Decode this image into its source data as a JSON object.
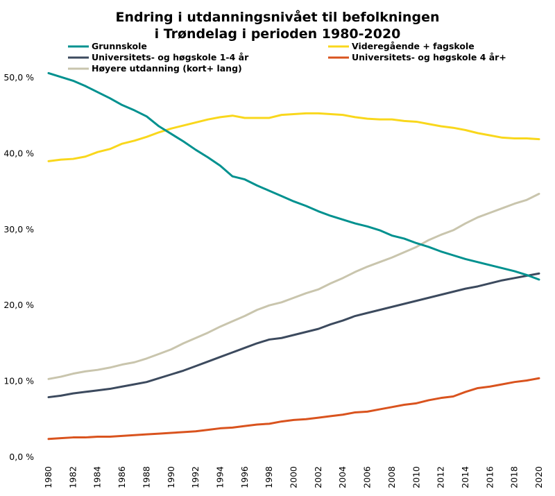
{
  "chart_data": {
    "type": "line",
    "title": [
      "Endring i utdanningsnivået til befolkningen",
      "i Trøndelag i perioden 1980-2020"
    ],
    "xlabel": "",
    "ylabel": "",
    "ylim": [
      0,
      50
    ],
    "y_ticks": [
      "0,0 %",
      "10,0 %",
      "20,0 %",
      "30,0 %",
      "40,0 %",
      "50,0 %"
    ],
    "x_ticks": [
      "1980",
      "1982",
      "1984",
      "1986",
      "1988",
      "1990",
      "1992",
      "1994",
      "1996",
      "1998",
      "2000",
      "2002",
      "2004",
      "2006",
      "2008",
      "2010",
      "2012",
      "2014",
      "2016",
      "2018",
      "2020"
    ],
    "x": [
      1980,
      1981,
      1982,
      1983,
      1984,
      1985,
      1986,
      1987,
      1988,
      1989,
      1990,
      1991,
      1992,
      1993,
      1994,
      1995,
      1996,
      1997,
      1998,
      1999,
      2000,
      2001,
      2002,
      2003,
      2004,
      2005,
      2006,
      2007,
      2008,
      2009,
      2010,
      2011,
      2012,
      2013,
      2014,
      2015,
      2016,
      2017,
      2018,
      2019,
      2020
    ],
    "grid": false,
    "legend_position": "top",
    "series": [
      {
        "name": "Grunnskole",
        "color": "#00918f",
        "values": [
          50.6,
          50.1,
          49.6,
          48.9,
          48.1,
          47.3,
          46.4,
          45.7,
          44.9,
          43.6,
          42.6,
          41.6,
          40.5,
          39.5,
          38.4,
          37.0,
          36.6,
          35.8,
          35.1,
          34.4,
          33.7,
          33.1,
          32.4,
          31.8,
          31.3,
          30.8,
          30.4,
          29.9,
          29.2,
          28.8,
          28.2,
          27.7,
          27.1,
          26.6,
          26.1,
          25.7,
          25.3,
          24.9,
          24.5,
          24.0,
          23.4
        ]
      },
      {
        "name": "Videregående + fagskole",
        "color": "#f9d71c",
        "values": [
          39.0,
          39.2,
          39.3,
          39.6,
          40.2,
          40.6,
          41.3,
          41.7,
          42.2,
          42.8,
          43.3,
          43.7,
          44.1,
          44.5,
          44.8,
          45.0,
          44.7,
          44.7,
          44.7,
          45.1,
          45.2,
          45.3,
          45.3,
          45.2,
          45.1,
          44.8,
          44.6,
          44.5,
          44.5,
          44.3,
          44.2,
          43.9,
          43.6,
          43.4,
          43.1,
          42.7,
          42.4,
          42.1,
          42.0,
          42.0,
          41.9
        ]
      },
      {
        "name": "Universitets- og høgskole 1-4 år",
        "color": "#3c4a5e",
        "values": [
          7.9,
          8.1,
          8.4,
          8.6,
          8.8,
          9.0,
          9.3,
          9.6,
          9.9,
          10.4,
          10.9,
          11.4,
          12.0,
          12.6,
          13.2,
          13.8,
          14.4,
          15.0,
          15.5,
          15.7,
          16.1,
          16.5,
          16.9,
          17.5,
          18.0,
          18.6,
          19.0,
          19.4,
          19.8,
          20.2,
          20.6,
          21.0,
          21.4,
          21.8,
          22.2,
          22.5,
          22.9,
          23.3,
          23.6,
          23.9,
          24.2
        ]
      },
      {
        "name": "Universitets- og høgskole 4 år+",
        "color": "#d9531e",
        "values": [
          2.4,
          2.5,
          2.6,
          2.6,
          2.7,
          2.7,
          2.8,
          2.9,
          3.0,
          3.1,
          3.2,
          3.3,
          3.4,
          3.6,
          3.8,
          3.9,
          4.1,
          4.3,
          4.4,
          4.7,
          4.9,
          5.0,
          5.2,
          5.4,
          5.6,
          5.9,
          6.0,
          6.3,
          6.6,
          6.9,
          7.1,
          7.5,
          7.8,
          8.0,
          8.6,
          9.1,
          9.3,
          9.6,
          9.9,
          10.1,
          10.4
        ]
      },
      {
        "name": "Høyere utdanning (kort+ lang)",
        "color": "#c9c5ad",
        "values": [
          10.3,
          10.6,
          11.0,
          11.3,
          11.5,
          11.8,
          12.2,
          12.5,
          13.0,
          13.6,
          14.2,
          15.0,
          15.7,
          16.4,
          17.2,
          17.9,
          18.6,
          19.4,
          20.0,
          20.4,
          21.0,
          21.6,
          22.1,
          22.9,
          23.6,
          24.4,
          25.1,
          25.7,
          26.3,
          27.0,
          27.7,
          28.6,
          29.3,
          29.9,
          30.8,
          31.6,
          32.2,
          32.8,
          33.4,
          33.9,
          34.7
        ]
      }
    ]
  }
}
